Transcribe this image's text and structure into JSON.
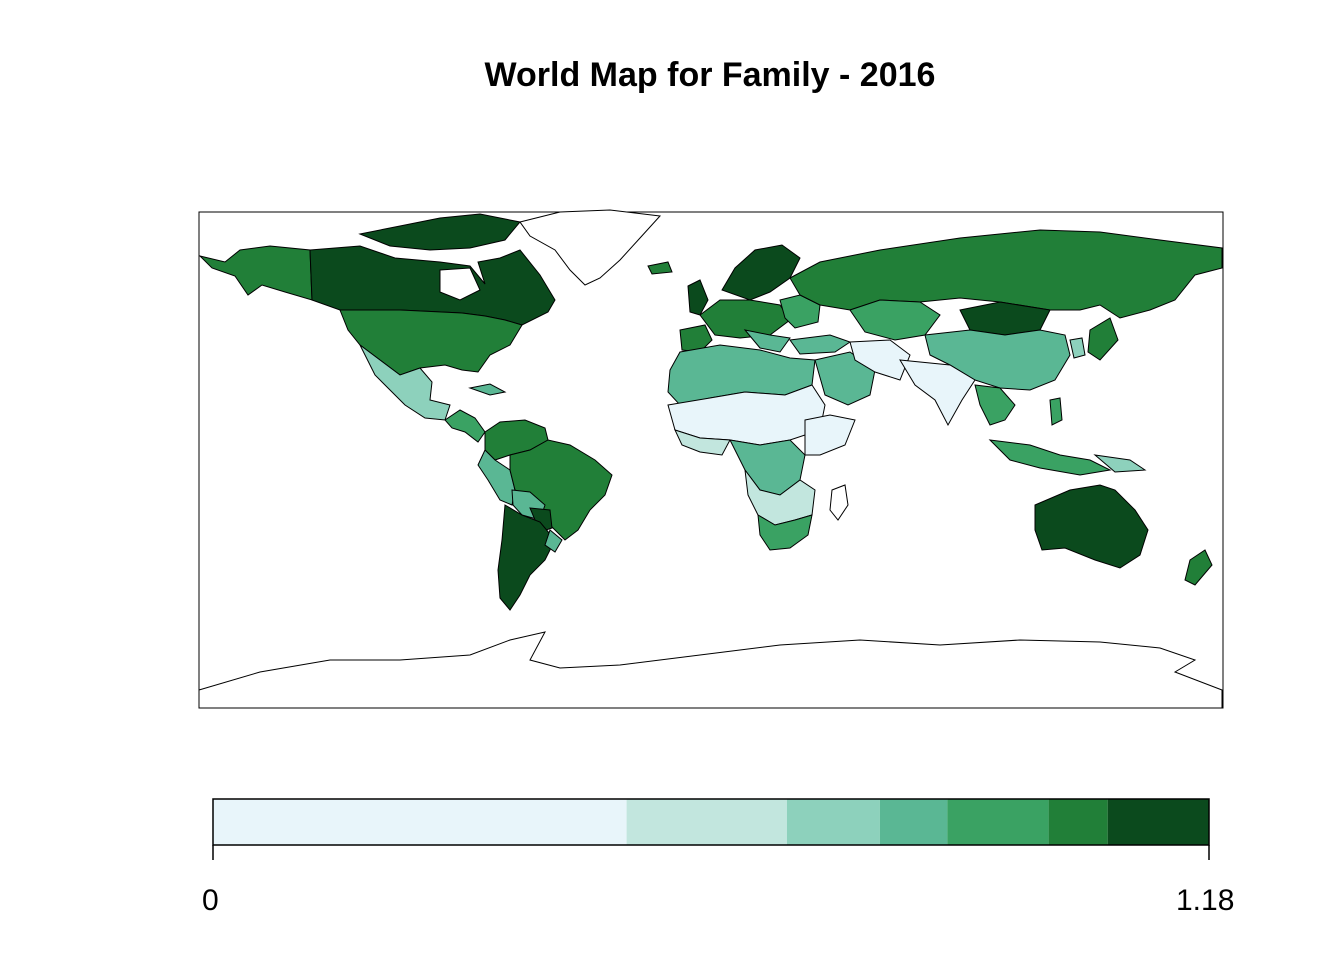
{
  "title": "World Map for Family - 2016",
  "legend": {
    "min_label": "0",
    "max_label": "1.18",
    "bins": [
      {
        "from": 0.0,
        "to": 0.49,
        "color": "#e8f5fa"
      },
      {
        "from": 0.49,
        "to": 0.68,
        "color": "#c2e6de"
      },
      {
        "from": 0.68,
        "to": 0.79,
        "color": "#8dd1bc"
      },
      {
        "from": 0.79,
        "to": 0.87,
        "color": "#5ab794"
      },
      {
        "from": 0.87,
        "to": 0.99,
        "color": "#3aa263"
      },
      {
        "from": 0.99,
        "to": 1.06,
        "color": "#217f38"
      },
      {
        "from": 1.06,
        "to": 1.18,
        "color": "#0b4a1d"
      }
    ]
  },
  "colors": {
    "border": "#000000",
    "no_data": "#ffffff",
    "background": "#ffffff"
  }
}
